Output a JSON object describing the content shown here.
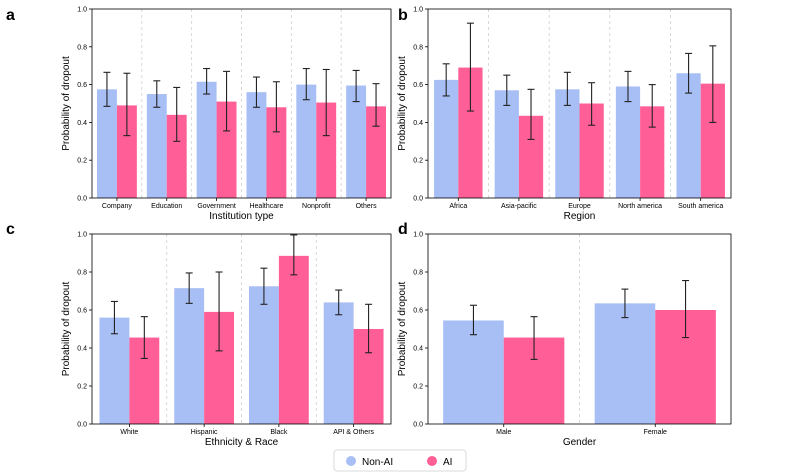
{
  "colors": {
    "non_ai": "#a8bff5",
    "ai": "#ff5f96",
    "error": "#222222",
    "divider": "#cfcfcf"
  },
  "legend": {
    "items": [
      {
        "label": "Non-AI",
        "color": "#a8bff5"
      },
      {
        "label": "AI",
        "color": "#ff5f96"
      }
    ]
  },
  "chart_data": [
    {
      "panel": "a",
      "type": "bar",
      "categories": [
        "Company",
        "Education",
        "Government",
        "Healthcare",
        "Nonprofit",
        "Others"
      ],
      "xlabel": "Institution type",
      "ylabel": "Probability of dropout",
      "ylim": [
        0,
        1.0
      ],
      "yticks": [
        "0.0",
        "0.2",
        "0.4",
        "0.6",
        "0.8",
        "1.0"
      ],
      "series": [
        {
          "name": "Non-AI",
          "values": [
            0.575,
            0.55,
            0.615,
            0.56,
            0.6,
            0.595
          ],
          "err_low": [
            0.485,
            0.48,
            0.55,
            0.48,
            0.52,
            0.51
          ],
          "err_high": [
            0.665,
            0.62,
            0.685,
            0.64,
            0.685,
            0.675
          ]
        },
        {
          "name": "AI",
          "values": [
            0.49,
            0.44,
            0.51,
            0.48,
            0.505,
            0.485
          ],
          "err_low": [
            0.33,
            0.3,
            0.355,
            0.35,
            0.33,
            0.38
          ],
          "err_high": [
            0.66,
            0.585,
            0.67,
            0.615,
            0.68,
            0.605
          ]
        }
      ]
    },
    {
      "panel": "b",
      "type": "bar",
      "categories": [
        "Africa",
        "Asia-pacific",
        "Europe",
        "North america",
        "South america"
      ],
      "xlabel": "Region",
      "ylabel": "Probability of dropout",
      "ylim": [
        0,
        1.0
      ],
      "yticks": [
        "0.0",
        "0.2",
        "0.4",
        "0.6",
        "0.8",
        "1.0"
      ],
      "series": [
        {
          "name": "Non-AI",
          "values": [
            0.625,
            0.57,
            0.575,
            0.59,
            0.66
          ],
          "err_low": [
            0.54,
            0.49,
            0.49,
            0.51,
            0.555
          ],
          "err_high": [
            0.71,
            0.65,
            0.665,
            0.67,
            0.765
          ]
        },
        {
          "name": "AI",
          "values": [
            0.69,
            0.435,
            0.5,
            0.485,
            0.605
          ],
          "err_low": [
            0.46,
            0.31,
            0.385,
            0.375,
            0.4
          ],
          "err_high": [
            0.925,
            0.575,
            0.61,
            0.6,
            0.805
          ]
        }
      ]
    },
    {
      "panel": "c",
      "type": "bar",
      "categories": [
        "White",
        "Hispanic",
        "Black",
        "API & Others"
      ],
      "xlabel": "Ethnicity & Race",
      "ylabel": "Probability of dropout",
      "ylim": [
        0,
        1.0
      ],
      "yticks": [
        "0.0",
        "0.2",
        "0.4",
        "0.6",
        "0.8",
        "1.0"
      ],
      "series": [
        {
          "name": "Non-AI",
          "values": [
            0.56,
            0.715,
            0.725,
            0.64
          ],
          "err_low": [
            0.475,
            0.635,
            0.63,
            0.575
          ],
          "err_high": [
            0.645,
            0.795,
            0.82,
            0.705
          ]
        },
        {
          "name": "AI",
          "values": [
            0.455,
            0.59,
            0.885,
            0.5
          ],
          "err_low": [
            0.345,
            0.385,
            0.785,
            0.375
          ],
          "err_high": [
            0.565,
            0.8,
            0.995,
            0.63
          ]
        }
      ]
    },
    {
      "panel": "d",
      "type": "bar",
      "categories": [
        "Male",
        "Female"
      ],
      "xlabel": "Gender",
      "ylabel": "Probability of dropout",
      "ylim": [
        0,
        1.0
      ],
      "yticks": [
        "0.0",
        "0.2",
        "0.4",
        "0.6",
        "0.8",
        "1.0"
      ],
      "series": [
        {
          "name": "Non-AI",
          "values": [
            0.545,
            0.635
          ],
          "err_low": [
            0.47,
            0.56
          ],
          "err_high": [
            0.625,
            0.71
          ]
        },
        {
          "name": "AI",
          "values": [
            0.455,
            0.6
          ],
          "err_low": [
            0.34,
            0.455
          ],
          "err_high": [
            0.565,
            0.755
          ]
        }
      ]
    }
  ]
}
